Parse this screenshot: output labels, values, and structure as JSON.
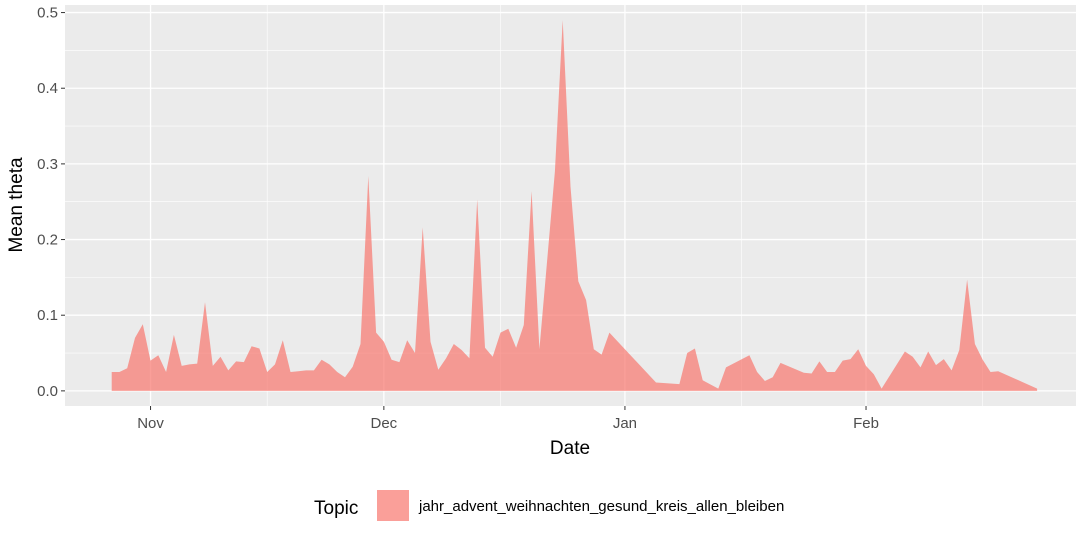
{
  "chart_data": {
    "type": "area",
    "xlabel": "Date",
    "ylabel": "Mean theta",
    "xlim": [
      "2020-10-21",
      "2021-02-28"
    ],
    "ylim": [
      -0.02,
      0.51
    ],
    "y_ticks": [
      0.0,
      0.1,
      0.2,
      0.3,
      0.4,
      0.5
    ],
    "y_tick_labels": [
      "0.0",
      "0.1",
      "0.2",
      "0.3",
      "0.4",
      "0.5"
    ],
    "x_ticks": [
      {
        "date": "2020-11-01",
        "label": "Nov"
      },
      {
        "date": "2020-12-01",
        "label": "Dec"
      },
      {
        "date": "2021-01-01",
        "label": "Jan"
      },
      {
        "date": "2021-02-01",
        "label": "Feb"
      }
    ],
    "x_minor_ticks": [
      "2020-10-16",
      "2020-11-16",
      "2020-12-16",
      "2021-01-16",
      "2021-02-16"
    ],
    "grid": true,
    "legend": {
      "title": "Topic",
      "position": "bottom"
    },
    "series": [
      {
        "name": "jahr_advent_weihnachten_gesund_kreis_allen_bleiben",
        "color": "#F8766D",
        "points": [
          [
            "2020-10-27",
            0.025
          ],
          [
            "2020-10-28",
            0.025
          ],
          [
            "2020-10-29",
            0.03
          ],
          [
            "2020-10-30",
            0.07
          ],
          [
            "2020-10-31",
            0.088
          ],
          [
            "2020-11-01",
            0.04
          ],
          [
            "2020-11-02",
            0.047
          ],
          [
            "2020-11-03",
            0.025
          ],
          [
            "2020-11-04",
            0.074
          ],
          [
            "2020-11-05",
            0.033
          ],
          [
            "2020-11-06",
            0.035
          ],
          [
            "2020-11-07",
            0.036
          ],
          [
            "2020-11-08",
            0.117
          ],
          [
            "2020-11-09",
            0.033
          ],
          [
            "2020-11-10",
            0.045
          ],
          [
            "2020-11-11",
            0.027
          ],
          [
            "2020-11-12",
            0.039
          ],
          [
            "2020-11-13",
            0.038
          ],
          [
            "2020-11-14",
            0.059
          ],
          [
            "2020-11-15",
            0.056
          ],
          [
            "2020-11-16",
            0.025
          ],
          [
            "2020-11-17",
            0.035
          ],
          [
            "2020-11-18",
            0.067
          ],
          [
            "2020-11-19",
            0.025
          ],
          [
            "2020-11-20",
            0.026
          ],
          [
            "2020-11-21",
            0.027
          ],
          [
            "2020-11-22",
            0.027
          ],
          [
            "2020-11-23",
            0.041
          ],
          [
            "2020-11-24",
            0.035
          ],
          [
            "2020-11-25",
            0.025
          ],
          [
            "2020-11-26",
            0.018
          ],
          [
            "2020-11-27",
            0.032
          ],
          [
            "2020-11-28",
            0.062
          ],
          [
            "2020-11-29",
            0.284
          ],
          [
            "2020-11-30",
            0.077
          ],
          [
            "2020-12-01",
            0.065
          ],
          [
            "2020-12-02",
            0.041
          ],
          [
            "2020-12-03",
            0.038
          ],
          [
            "2020-12-04",
            0.067
          ],
          [
            "2020-12-05",
            0.05
          ],
          [
            "2020-12-06",
            0.216
          ],
          [
            "2020-12-07",
            0.065
          ],
          [
            "2020-12-08",
            0.028
          ],
          [
            "2020-12-09",
            0.043
          ],
          [
            "2020-12-10",
            0.062
          ],
          [
            "2020-12-11",
            0.054
          ],
          [
            "2020-12-12",
            0.043
          ],
          [
            "2020-12-13",
            0.253
          ],
          [
            "2020-12-14",
            0.057
          ],
          [
            "2020-12-15",
            0.045
          ],
          [
            "2020-12-16",
            0.077
          ],
          [
            "2020-12-17",
            0.082
          ],
          [
            "2020-12-18",
            0.057
          ],
          [
            "2020-12-19",
            0.087
          ],
          [
            "2020-12-20",
            0.264
          ],
          [
            "2020-12-21",
            0.055
          ],
          [
            "2020-12-23",
            0.29
          ],
          [
            "2020-12-24",
            0.49
          ],
          [
            "2020-12-25",
            0.27
          ],
          [
            "2020-12-26",
            0.145
          ],
          [
            "2020-12-27",
            0.12
          ],
          [
            "2020-12-28",
            0.055
          ],
          [
            "2020-12-29",
            0.048
          ],
          [
            "2020-12-30",
            0.077
          ],
          [
            "2021-01-05",
            0.011
          ],
          [
            "2021-01-08",
            0.009
          ],
          [
            "2021-01-09",
            0.05
          ],
          [
            "2021-01-10",
            0.056
          ],
          [
            "2021-01-11",
            0.014
          ],
          [
            "2021-01-13",
            0.003
          ],
          [
            "2021-01-14",
            0.031
          ],
          [
            "2021-01-17",
            0.047
          ],
          [
            "2021-01-18",
            0.025
          ],
          [
            "2021-01-19",
            0.013
          ],
          [
            "2021-01-20",
            0.018
          ],
          [
            "2021-01-21",
            0.037
          ],
          [
            "2021-01-24",
            0.024
          ],
          [
            "2021-01-25",
            0.023
          ],
          [
            "2021-01-26",
            0.039
          ],
          [
            "2021-01-27",
            0.025
          ],
          [
            "2021-01-28",
            0.025
          ],
          [
            "2021-01-29",
            0.04
          ],
          [
            "2021-01-30",
            0.042
          ],
          [
            "2021-01-31",
            0.055
          ],
          [
            "2021-02-01",
            0.033
          ],
          [
            "2021-02-02",
            0.022
          ],
          [
            "2021-02-03",
            0.003
          ],
          [
            "2021-02-06",
            0.052
          ],
          [
            "2021-02-07",
            0.045
          ],
          [
            "2021-02-08",
            0.031
          ],
          [
            "2021-02-09",
            0.052
          ],
          [
            "2021-02-10",
            0.034
          ],
          [
            "2021-02-11",
            0.042
          ],
          [
            "2021-02-12",
            0.027
          ],
          [
            "2021-02-13",
            0.054
          ],
          [
            "2021-02-14",
            0.147
          ],
          [
            "2021-02-15",
            0.062
          ],
          [
            "2021-02-16",
            0.041
          ],
          [
            "2021-02-17",
            0.025
          ],
          [
            "2021-02-18",
            0.026
          ],
          [
            "2021-02-23",
            0.003
          ]
        ]
      }
    ]
  }
}
